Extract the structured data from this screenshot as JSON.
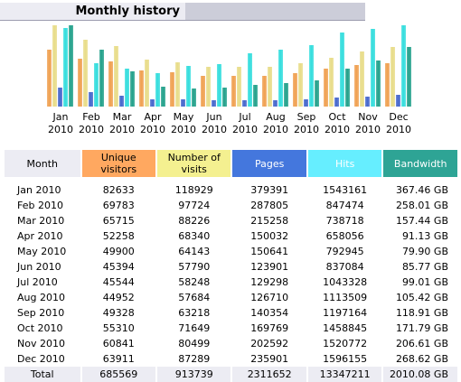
{
  "header": {
    "title": "Monthly history"
  },
  "colors": {
    "unique": "#f0a050",
    "visits": "#e8dc88",
    "pages": "#4466cc",
    "hits": "#33dddd",
    "bandwidth": "#22a08a"
  },
  "chart_data": {
    "type": "bar",
    "categories": [
      "Jan\n2010",
      "Feb\n2010",
      "Mar\n2010",
      "Apr\n2010",
      "May\n2010",
      "Jun\n2010",
      "Jul\n2010",
      "Aug\n2010",
      "Sep\n2010",
      "Oct\n2010",
      "Nov\n2010",
      "Dec\n2010"
    ],
    "month_labels": [
      "Jan",
      "Feb",
      "Mar",
      "Apr",
      "May",
      "Jun",
      "Jul",
      "Aug",
      "Sep",
      "Oct",
      "Nov",
      "Dec"
    ],
    "year_label": "2010",
    "series": [
      {
        "key": "unique",
        "values": [
          82633,
          69783,
          65715,
          52258,
          49900,
          45394,
          45544,
          44952,
          49328,
          55310,
          60841,
          63911
        ]
      },
      {
        "key": "visits",
        "values": [
          118929,
          97724,
          88226,
          68340,
          64143,
          57790,
          58248,
          57684,
          63218,
          71649,
          80499,
          87289
        ]
      },
      {
        "key": "pages",
        "values": [
          379391,
          287805,
          215258,
          150032,
          150641,
          123901,
          129298,
          126710,
          140354,
          169769,
          202592,
          235901
        ]
      },
      {
        "key": "hits",
        "values": [
          1543161,
          847474,
          738718,
          658056,
          792945,
          837084,
          1043328,
          1113509,
          1197164,
          1458845,
          1520772,
          1596155
        ]
      },
      {
        "key": "bandwidth",
        "values": [
          367.46,
          258.01,
          157.44,
          91.13,
          79.9,
          85.77,
          99.01,
          105.42,
          118.91,
          171.79,
          206.61,
          268.62
        ]
      }
    ]
  },
  "table": {
    "headers": {
      "month": "Month",
      "unique": "Unique visitors",
      "visits": "Number of visits",
      "pages": "Pages",
      "hits": "Hits",
      "bandwidth": "Bandwidth"
    },
    "rows": [
      [
        "Jan 2010",
        "82633",
        "118929",
        "379391",
        "1543161",
        "367.46 GB"
      ],
      [
        "Feb 2010",
        "69783",
        "97724",
        "287805",
        "847474",
        "258.01 GB"
      ],
      [
        "Mar 2010",
        "65715",
        "88226",
        "215258",
        "738718",
        "157.44 GB"
      ],
      [
        "Apr 2010",
        "52258",
        "68340",
        "150032",
        "658056",
        "91.13 GB"
      ],
      [
        "May 2010",
        "49900",
        "64143",
        "150641",
        "792945",
        "79.90 GB"
      ],
      [
        "Jun 2010",
        "45394",
        "57790",
        "123901",
        "837084",
        "85.77 GB"
      ],
      [
        "Jul 2010",
        "45544",
        "58248",
        "129298",
        "1043328",
        "99.01 GB"
      ],
      [
        "Aug 2010",
        "44952",
        "57684",
        "126710",
        "1113509",
        "105.42 GB"
      ],
      [
        "Sep 2010",
        "49328",
        "63218",
        "140354",
        "1197164",
        "118.91 GB"
      ],
      [
        "Oct 2010",
        "55310",
        "71649",
        "169769",
        "1458845",
        "171.79 GB"
      ],
      [
        "Nov 2010",
        "60841",
        "80499",
        "202592",
        "1520772",
        "206.61 GB"
      ],
      [
        "Dec 2010",
        "63911",
        "87289",
        "235901",
        "1596155",
        "268.62 GB"
      ]
    ],
    "total": [
      "Total",
      "685569",
      "913739",
      "2311652",
      "13347211",
      "2010.08 GB"
    ]
  }
}
